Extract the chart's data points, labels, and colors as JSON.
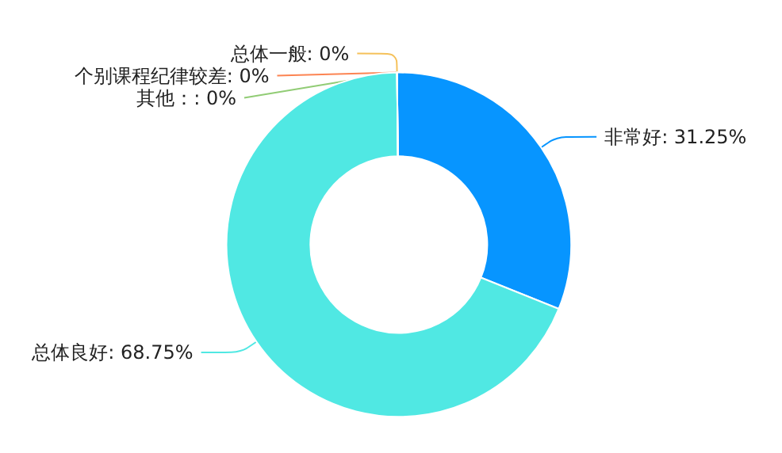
{
  "chart_data": {
    "type": "donut",
    "categories": [
      "非常好",
      "总体良好",
      "总体一般",
      "个别课程纪律较差",
      "其他"
    ],
    "values": [
      31.25,
      68.75,
      0,
      0,
      0
    ],
    "value_labels": [
      ": 31.25%",
      ": 68.75%",
      ": 0%",
      ": 0%",
      "：: 0%"
    ],
    "colors": [
      "#0795ff",
      "#50e8e3",
      "#f5c15a",
      "#fc8452",
      "#91cc75"
    ],
    "legend": false
  }
}
